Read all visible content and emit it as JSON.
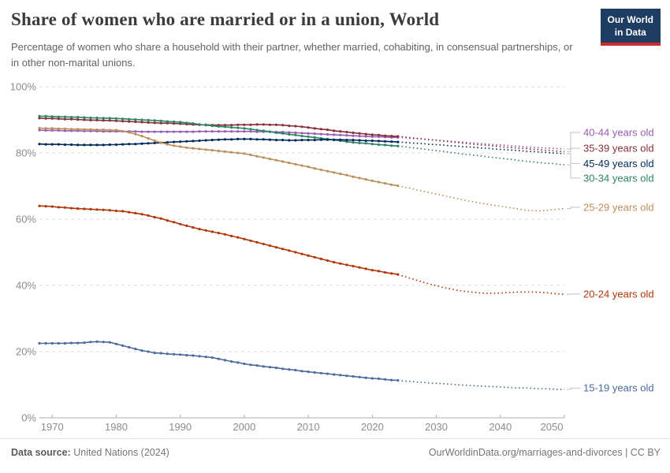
{
  "header": {
    "title": "Share of women who are married or in a union, World",
    "subtitle": "Percentage of women who share a household with their partner, whether married, cohabiting, in consensual partnerships, or in other non-marital unions.",
    "logo": {
      "line1": "Our World",
      "line2": "in Data",
      "bg": "#1d3d63",
      "accent": "#cc2c2c"
    }
  },
  "footer": {
    "source_label": "Data source:",
    "source_value": "United Nations (2024)",
    "rights": "OurWorldinData.org/marriages-and-divorces | CC BY"
  },
  "chart_data": {
    "type": "line",
    "title": "Share of women who are married or in a union, World",
    "xlabel": "",
    "ylabel": "",
    "x_start": 1968,
    "x_end": 2050,
    "projection_from": 2024,
    "projection_style": "dotted",
    "grid": "horizontal dashed",
    "legend_position": "right-edge series labels with gray connectors",
    "ylim": [
      0,
      100
    ],
    "xticks": [
      1970,
      1980,
      1990,
      2000,
      2010,
      2020,
      2030,
      2040,
      2050
    ],
    "yticks": [
      {
        "value": 0,
        "label": "0%"
      },
      {
        "value": 20,
        "label": "20%"
      },
      {
        "value": 40,
        "label": "40%"
      },
      {
        "value": 60,
        "label": "60%"
      },
      {
        "value": 80,
        "label": "80%"
      },
      {
        "value": 100,
        "label": "100%"
      }
    ],
    "series": [
      {
        "id": "40-44",
        "name": "40-44 years old",
        "color": "#9A5CB4",
        "z": 0,
        "label_value": 86.2,
        "values": [
          86.9,
          86.8,
          86.8,
          86.8,
          86.7,
          86.7,
          86.7,
          86.6,
          86.6,
          86.6,
          86.5,
          86.5,
          86.5,
          86.5,
          86.5,
          86.5,
          86.4,
          86.4,
          86.4,
          86.4,
          86.4,
          86.4,
          86.4,
          86.4,
          86.4,
          86.5,
          86.5,
          86.5,
          86.5,
          86.5,
          86.5,
          86.5,
          86.5,
          86.5,
          86.4,
          86.4,
          86.4,
          86.3,
          86.3,
          86.2,
          86.1,
          86.0,
          85.9,
          85.8,
          85.7,
          85.6,
          85.5,
          85.4,
          85.3,
          85.2,
          85.1,
          85.0,
          84.9,
          84.9,
          84.8,
          84.7,
          84.7,
          84.6,
          84.4,
          84.3,
          84.2,
          84.0,
          83.9,
          83.7,
          83.6,
          83.4,
          83.3,
          83.1,
          83.0,
          82.8,
          82.7,
          82.5,
          82.4,
          82.3,
          82.1,
          82.0,
          81.8,
          81.7,
          81.6,
          81.5,
          81.4,
          81.3,
          81.2
        ]
      },
      {
        "id": "35-39",
        "name": "35-39 years old",
        "color": "#883039",
        "z": 1,
        "label_value": 81.4,
        "values": [
          90.5,
          90.4,
          90.4,
          90.3,
          90.2,
          90.2,
          90.1,
          90.0,
          89.9,
          89.9,
          89.8,
          89.8,
          89.7,
          89.6,
          89.5,
          89.4,
          89.3,
          89.2,
          89.1,
          89.0,
          89.0,
          88.9,
          88.8,
          88.7,
          88.6,
          88.5,
          88.5,
          88.4,
          88.4,
          88.4,
          88.4,
          88.5,
          88.5,
          88.5,
          88.6,
          88.6,
          88.5,
          88.5,
          88.4,
          88.2,
          88.1,
          87.9,
          87.7,
          87.4,
          87.2,
          87.0,
          86.7,
          86.5,
          86.3,
          86.1,
          85.9,
          85.7,
          85.5,
          85.4,
          85.2,
          85.1,
          85.0,
          84.8,
          84.6,
          84.4,
          84.2,
          84.0,
          83.8,
          83.6,
          83.4,
          83.2,
          83.0,
          82.8,
          82.6,
          82.4,
          82.3,
          82.1,
          81.9,
          81.7,
          81.6,
          81.4,
          81.3,
          81.1,
          81.0,
          80.8,
          80.7,
          80.5,
          80.4
        ]
      },
      {
        "id": "45-49",
        "name": "45-49 years old",
        "color": "#00295B",
        "z": 3,
        "label_value": 76.8,
        "values": [
          82.7,
          82.6,
          82.6,
          82.6,
          82.5,
          82.5,
          82.4,
          82.4,
          82.4,
          82.4,
          82.4,
          82.5,
          82.5,
          82.6,
          82.7,
          82.7,
          82.8,
          82.9,
          83.0,
          83.1,
          83.2,
          83.3,
          83.4,
          83.5,
          83.6,
          83.7,
          83.8,
          83.9,
          84.0,
          84.1,
          84.1,
          84.2,
          84.2,
          84.2,
          84.1,
          84.1,
          84.0,
          83.9,
          83.9,
          83.8,
          83.8,
          83.9,
          83.9,
          83.9,
          84.0,
          84.0,
          84.0,
          84.0,
          83.9,
          83.9,
          83.8,
          83.7,
          83.7,
          83.6,
          83.5,
          83.4,
          83.3,
          83.2,
          83.0,
          82.9,
          82.8,
          82.6,
          82.5,
          82.4,
          82.2,
          82.1,
          81.9,
          81.8,
          81.7,
          81.5,
          81.4,
          81.2,
          81.1,
          81.0,
          80.8,
          80.7,
          80.5,
          80.4,
          80.3,
          80.2,
          80.0,
          79.9,
          79.8
        ]
      },
      {
        "id": "30-34",
        "name": "30-34 years old",
        "color": "#2C8465",
        "z": 2,
        "label_value": 72.4,
        "values": [
          91.1,
          91.1,
          91.0,
          90.9,
          90.9,
          90.8,
          90.8,
          90.7,
          90.6,
          90.6,
          90.5,
          90.5,
          90.4,
          90.3,
          90.2,
          90.1,
          90.0,
          89.9,
          89.8,
          89.7,
          89.5,
          89.4,
          89.3,
          89.1,
          88.9,
          88.6,
          88.4,
          88.2,
          88.0,
          87.9,
          87.7,
          87.6,
          87.4,
          87.2,
          86.9,
          86.7,
          86.4,
          86.1,
          85.9,
          85.6,
          85.4,
          85.1,
          84.9,
          84.7,
          84.4,
          84.2,
          83.9,
          83.7,
          83.4,
          83.2,
          83.0,
          82.9,
          82.7,
          82.5,
          82.4,
          82.2,
          82.1,
          81.9,
          81.6,
          81.4,
          81.2,
          80.9,
          80.7,
          80.5,
          80.2,
          80.0,
          79.7,
          79.5,
          79.3,
          79.1,
          78.8,
          78.6,
          78.4,
          78.2,
          78.0,
          77.7,
          77.5,
          77.3,
          77.1,
          76.9,
          76.8,
          76.6,
          76.4
        ]
      },
      {
        "id": "25-29",
        "name": "25-29 years old",
        "color": "#BC8E5A",
        "z": 4,
        "label_value": 63.6,
        "values": [
          87.5,
          87.4,
          87.4,
          87.3,
          87.3,
          87.2,
          87.2,
          87.1,
          87.1,
          87.0,
          87.0,
          86.9,
          86.9,
          86.6,
          86.2,
          85.7,
          85.1,
          84.4,
          83.7,
          83.1,
          82.6,
          82.2,
          81.9,
          81.6,
          81.4,
          81.2,
          81.0,
          80.8,
          80.6,
          80.4,
          80.2,
          80.0,
          79.8,
          79.4,
          79.0,
          78.6,
          78.2,
          77.8,
          77.4,
          77.0,
          76.6,
          76.2,
          75.8,
          75.3,
          74.9,
          74.5,
          74.1,
          73.7,
          73.3,
          72.8,
          72.4,
          72.0,
          71.6,
          71.2,
          70.8,
          70.4,
          70.1,
          69.7,
          69.3,
          68.8,
          68.4,
          68.0,
          67.6,
          67.2,
          66.7,
          66.3,
          65.9,
          65.5,
          65.2,
          64.8,
          64.5,
          64.2,
          63.9,
          63.6,
          63.3,
          63.0,
          62.7,
          62.6,
          62.5,
          62.6,
          62.8,
          63.0,
          63.2
        ]
      },
      {
        "id": "20-24",
        "name": "20-24 years old",
        "color": "#B13507",
        "z": 5,
        "label_value": 37.4,
        "values": [
          64.0,
          63.9,
          63.8,
          63.6,
          63.5,
          63.3,
          63.2,
          63.1,
          63.0,
          62.9,
          62.8,
          62.7,
          62.5,
          62.4,
          62.1,
          61.8,
          61.5,
          61.1,
          60.6,
          60.2,
          59.6,
          59.1,
          58.5,
          58.0,
          57.5,
          57.0,
          56.6,
          56.2,
          55.8,
          55.4,
          54.9,
          54.5,
          54.0,
          53.5,
          53.0,
          52.5,
          52.0,
          51.5,
          51.0,
          50.5,
          50.0,
          49.5,
          49.0,
          48.5,
          48.0,
          47.5,
          47.0,
          46.6,
          46.2,
          45.8,
          45.4,
          45.0,
          44.6,
          44.3,
          43.9,
          43.6,
          43.3,
          42.7,
          42.1,
          41.5,
          40.9,
          40.4,
          39.9,
          39.4,
          39.0,
          38.6,
          38.3,
          38.1,
          37.9,
          37.7,
          37.6,
          37.6,
          37.7,
          37.8,
          37.9,
          38.0,
          38.0,
          38.0,
          37.9,
          37.8,
          37.6,
          37.4,
          37.3
        ]
      },
      {
        "id": "15-19",
        "name": "15-19 years old",
        "color": "#4C6A9C",
        "z": 6,
        "label_value": 9.0,
        "values": [
          22.5,
          22.5,
          22.5,
          22.5,
          22.5,
          22.6,
          22.6,
          22.7,
          22.9,
          23.0,
          22.9,
          22.8,
          22.3,
          21.8,
          21.3,
          20.8,
          20.3,
          20.0,
          19.6,
          19.5,
          19.3,
          19.2,
          19.1,
          18.9,
          18.8,
          18.6,
          18.4,
          18.2,
          17.8,
          17.4,
          17.0,
          16.7,
          16.3,
          16.0,
          15.8,
          15.5,
          15.3,
          15.1,
          14.8,
          14.6,
          14.4,
          14.1,
          13.9,
          13.7,
          13.5,
          13.3,
          13.1,
          12.9,
          12.7,
          12.5,
          12.3,
          12.1,
          11.9,
          11.8,
          11.6,
          11.4,
          11.3,
          11.1,
          11.0,
          10.8,
          10.7,
          10.5,
          10.4,
          10.3,
          10.2,
          10.0,
          9.9,
          9.8,
          9.7,
          9.6,
          9.5,
          9.4,
          9.3,
          9.2,
          9.1,
          9.0,
          9.0,
          8.9,
          8.8,
          8.8,
          8.7,
          8.6,
          8.6
        ]
      }
    ]
  }
}
